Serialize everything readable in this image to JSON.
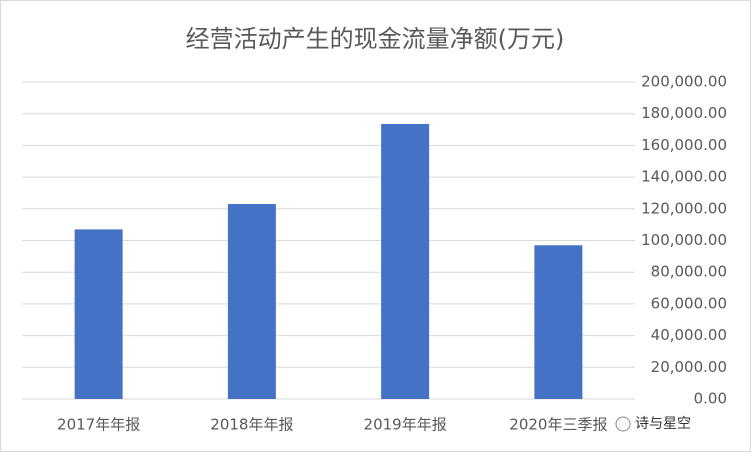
{
  "chart_data": {
    "type": "bar",
    "title": "经营活动产生的现金流量净额(万元)",
    "categories": [
      "2017年年报",
      "2018年年报",
      "2019年年报",
      "2020年三季报"
    ],
    "values": [
      107000,
      123000,
      173500,
      97000
    ],
    "color": "#4472c4",
    "ylim": [
      0,
      200000
    ],
    "yticks": [
      {
        "value": 0,
        "label": "0.00"
      },
      {
        "value": 20000,
        "label": "20,000.00"
      },
      {
        "value": 40000,
        "label": "40,000.00"
      },
      {
        "value": 60000,
        "label": "60,000.00"
      },
      {
        "value": 80000,
        "label": "80,000.00"
      },
      {
        "value": 100000,
        "label": "100,000.00"
      },
      {
        "value": 120000,
        "label": "120,000.00"
      },
      {
        "value": 140000,
        "label": "140,000.00"
      },
      {
        "value": 160000,
        "label": "160,000.00"
      },
      {
        "value": 180000,
        "label": "180,000.00"
      },
      {
        "value": 200000,
        "label": "200,000.00"
      }
    ],
    "grid": true,
    "watermark": "诗与星空"
  }
}
